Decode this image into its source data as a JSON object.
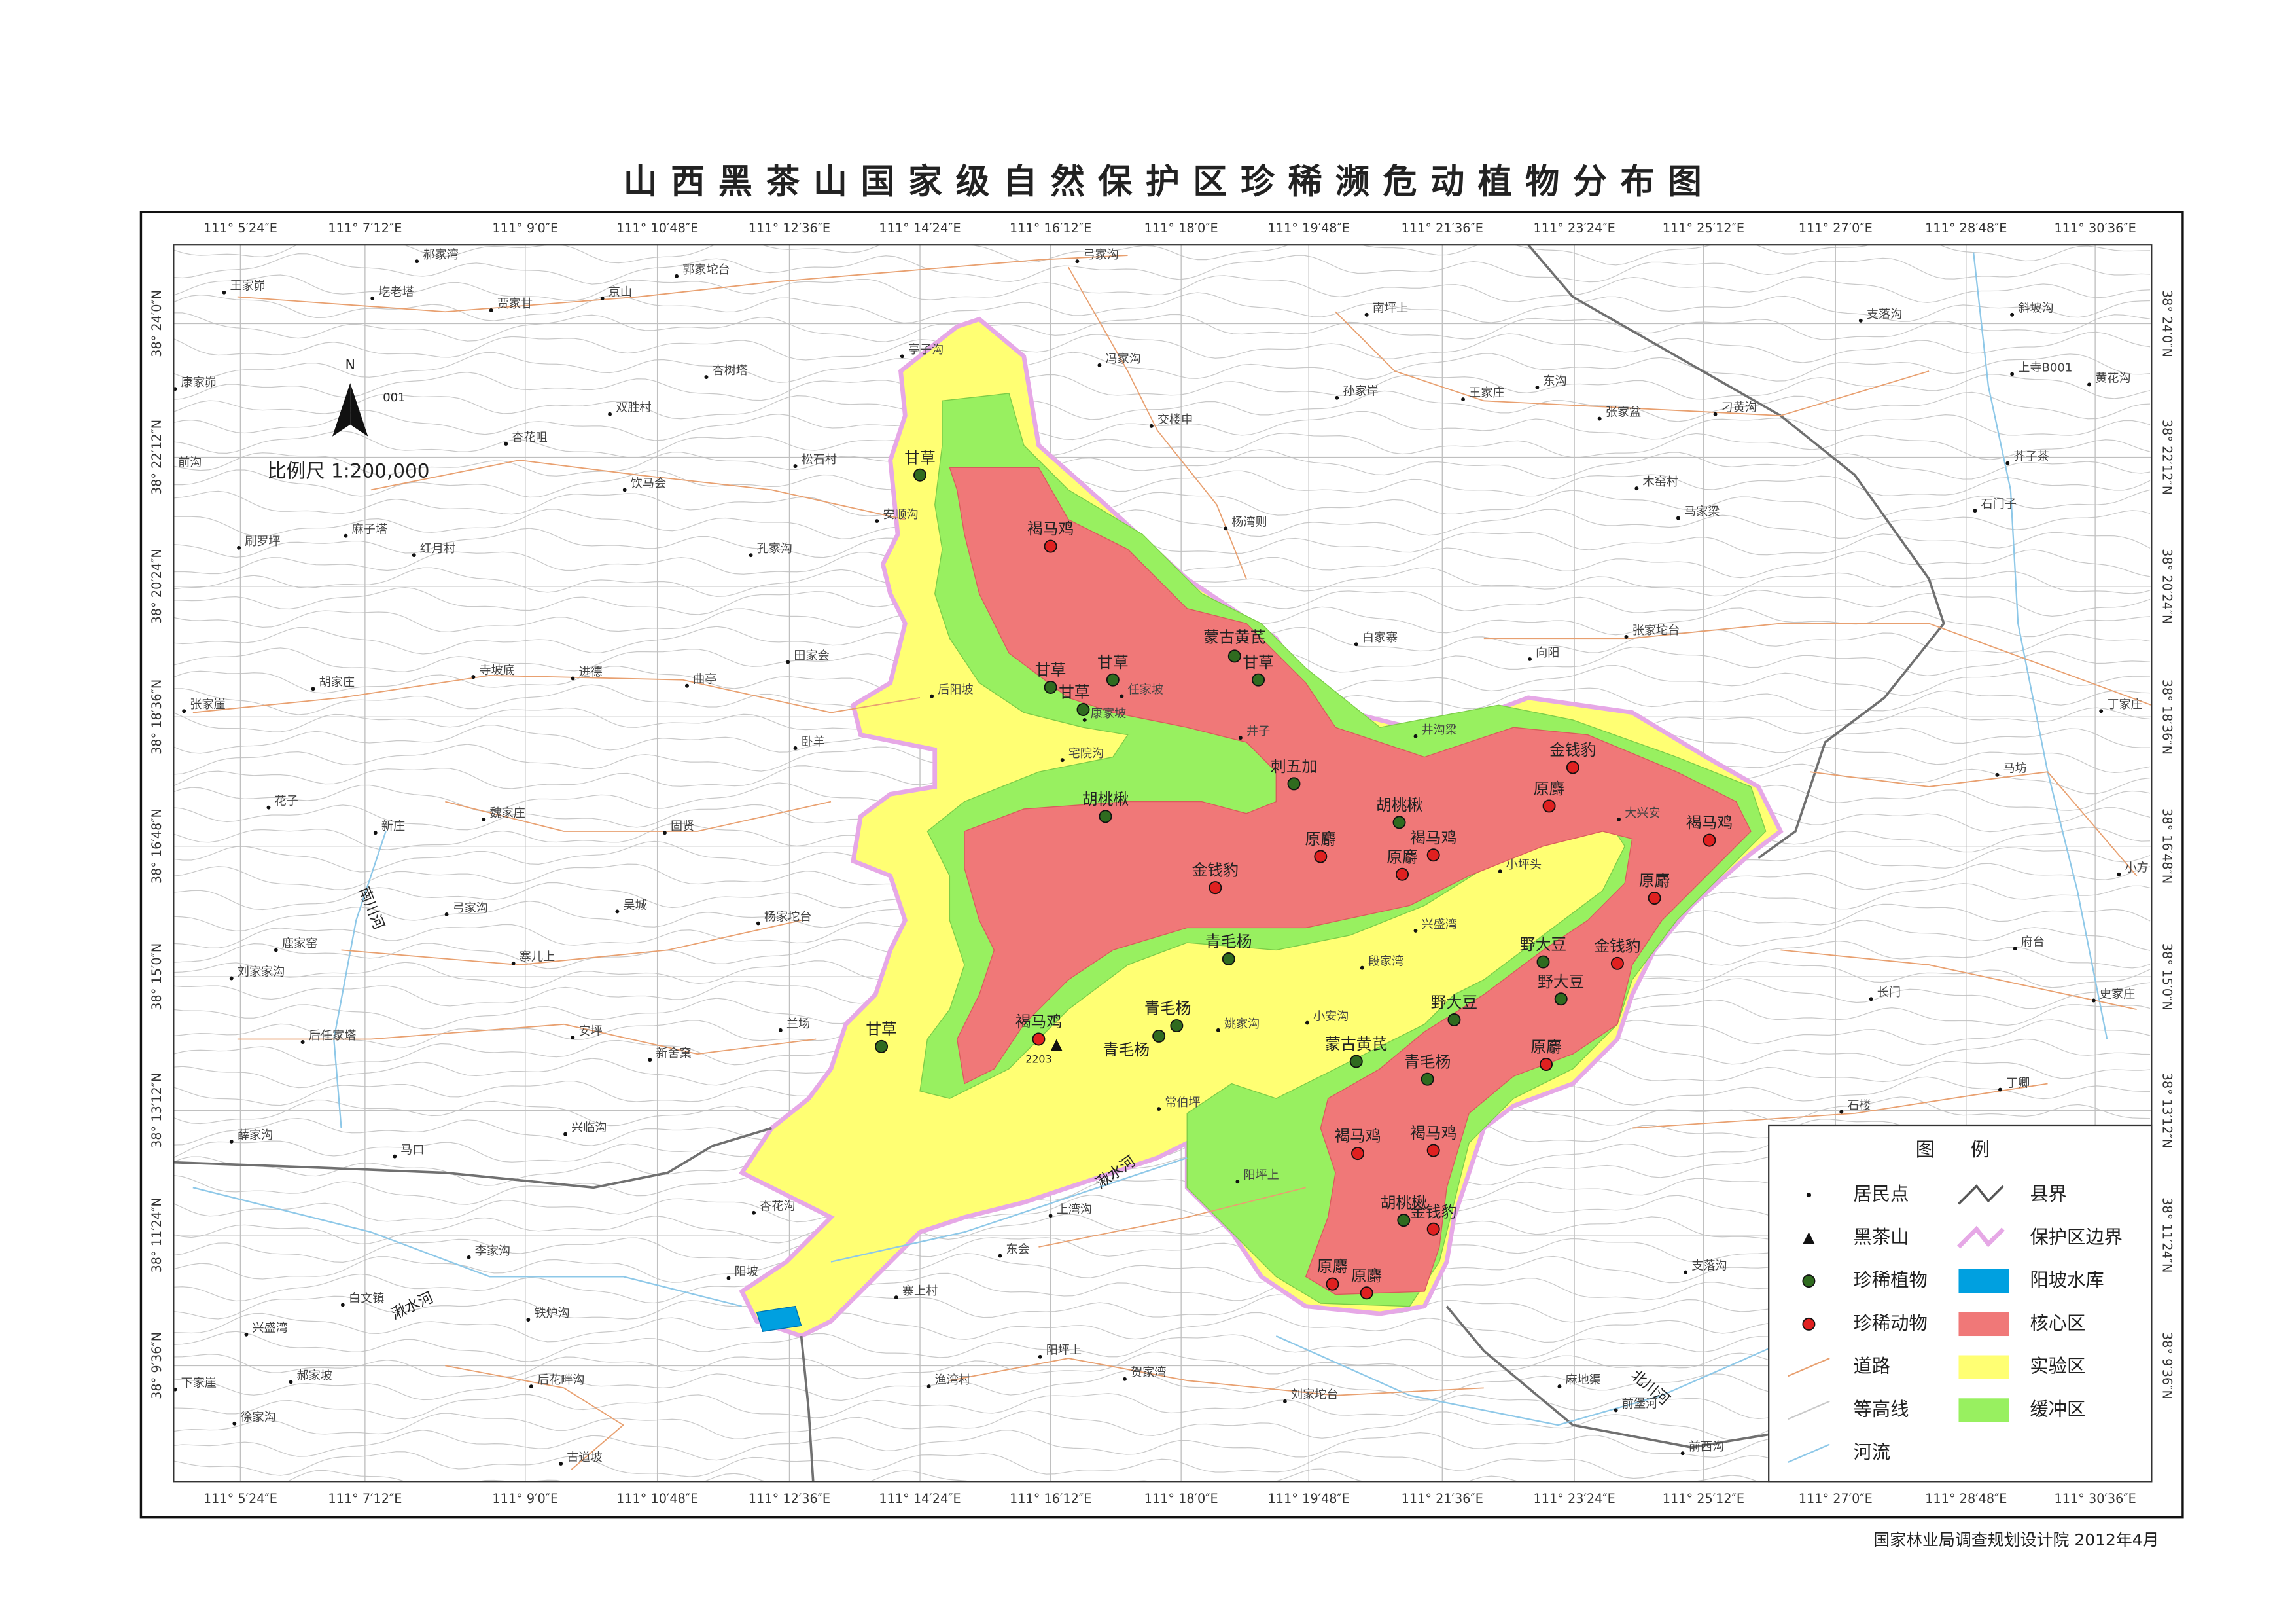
{
  "title": "山西黑茶山国家级自然保护区珍稀濒危动植物分布图",
  "longitude_labels": [
    "111° 5′24″E",
    "111° 7′12″E",
    "111° 9′0″E",
    "111° 10′48″E",
    "111° 12′36″E",
    "111° 14′24″E",
    "111° 16′12″E",
    "111° 18′0″E",
    "111° 19′48″E",
    "111° 21′36″E",
    "111° 23′24″E",
    "111° 25′12″E",
    "111° 27′0″E",
    "111° 28′48″E",
    "111° 30′36″E"
  ],
  "latitude_labels": [
    "38° 24′0″N",
    "38° 22′12″N",
    "38° 20′24″N",
    "38° 18′36″N",
    "38° 16′48″N",
    "38° 15′0″N",
    "38° 13′12″N",
    "38° 11′24″N",
    "38° 9′36″N"
  ],
  "north": {
    "label": "N",
    "code": "001"
  },
  "scale": "比例尺 1:200,000",
  "peak": {
    "elevation": "2203"
  },
  "rivers": [
    "南川河",
    "湫水河",
    "湫水河",
    "北川河"
  ],
  "settlements": [
    "王家峁",
    "圪老塔",
    "郝家湾",
    "贾家甘",
    "京山",
    "郭家坨台",
    "弓家沟",
    "康家峁",
    "南坪上",
    "支落沟",
    "斜坡沟",
    "亭子沟",
    "杏树塔",
    "冯家沟",
    "双胜村",
    "孙家岸",
    "王家庄",
    "东沟",
    "张家盆",
    "刁黄沟",
    "上寺B001",
    "黄花沟",
    "杏花咀",
    "交楼申",
    "前沟",
    "饮马会",
    "松石村",
    "芥子茶",
    "木窑村",
    "马家梁",
    "石门子",
    "安顺沟",
    "杨湾则",
    "刷罗坪",
    "麻子塔",
    "红月村",
    "孔家沟",
    "白家寨",
    "向阳",
    "张家坨台",
    "田家会",
    "寺坡底",
    "进德",
    "曲亭",
    "张家崖",
    "胡家庄",
    "后阳坡",
    "任家坡",
    "康家坡",
    "井子",
    "井沟梁",
    "丁家庄",
    "卧羊",
    "宅院沟",
    "马坊",
    "花子",
    "新庄",
    "魏家庄",
    "固贤",
    "大兴安",
    "小坪头",
    "小方",
    "弓家沟",
    "吴城",
    "杨家坨台",
    "兴盛湾",
    "府台",
    "鹿家窑",
    "寨儿上",
    "刘家家沟",
    "段家湾",
    "长门",
    "史家庄",
    "安坪",
    "后任家塔",
    "新舍窠",
    "兰场",
    "小安沟",
    "姚家沟",
    "常伯坪",
    "石楼",
    "丁卿",
    "薛家沟",
    "兴临沟",
    "马口",
    "阳坪上",
    "上湾沟",
    "杏花沟",
    "东会",
    "李家沟",
    "白文镇",
    "阳坡",
    "寨上村",
    "铁炉沟",
    "支落沟",
    "兴盛湾",
    "郝家坡",
    "下家崖",
    "后花畔沟",
    "阳坪上",
    "渔湾村",
    "贺家湾",
    "刘家坨台",
    "麻地渠",
    "前堡河",
    "徐家沟",
    "前西沟",
    "古道坡"
  ],
  "rare_plants": [
    "甘草",
    "甘草",
    "甘草",
    "甘草",
    "蒙古黄芪",
    "甘草",
    "刺五加",
    "胡桃楸",
    "胡桃楸",
    "青毛杨",
    "青毛杨",
    "青毛杨",
    "甘草",
    "野大豆",
    "野大豆",
    "野大豆",
    "蒙古黄芪",
    "青毛杨",
    "胡桃楸"
  ],
  "rare_animals": [
    "褐马鸡",
    "金钱豹",
    "原麝",
    "褐马鸡",
    "原麝",
    "原麝",
    "褐马鸡",
    "金钱豹",
    "原麝",
    "金钱豹",
    "褐马鸡",
    "原麝",
    "褐马鸡",
    "褐马鸡",
    "金钱豹",
    "原麝",
    "原麝"
  ],
  "legend": {
    "title": "图 例",
    "items": [
      "居民点",
      "黑茶山",
      "珍稀植物",
      "珍稀动物",
      "道路",
      "等高线",
      "河流",
      "县界",
      "保护区边界",
      "阳坡水库",
      "核心区",
      "实验区",
      "缓冲区"
    ]
  },
  "footer": "国家林业局调查规划设计院   2012年4月"
}
